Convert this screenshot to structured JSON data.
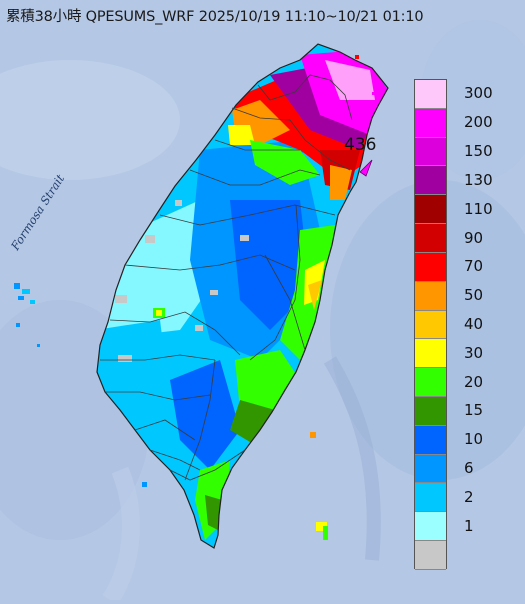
{
  "title": "累積38小時 QPESUMS_WRF 2025/10/19 11:10~10/21 01:10",
  "strait_label": "Formosa Strait",
  "peak_label": "436",
  "legend": [
    {
      "label": "300",
      "color": "#ffc8fa"
    },
    {
      "label": "200",
      "color": "#ff00ff"
    },
    {
      "label": "150",
      "color": "#dc00dc"
    },
    {
      "label": "130",
      "color": "#a000a0"
    },
    {
      "label": "110",
      "color": "#a00000"
    },
    {
      "label": "90",
      "color": "#d20000"
    },
    {
      "label": "70",
      "color": "#ff0000"
    },
    {
      "label": "50",
      "color": "#ff9600"
    },
    {
      "label": "40",
      "color": "#ffc800"
    },
    {
      "label": "30",
      "color": "#ffff00"
    },
    {
      "label": "20",
      "color": "#32ff00"
    },
    {
      "label": "15",
      "color": "#329600"
    },
    {
      "label": "10",
      "color": "#0064ff"
    },
    {
      "label": "6",
      "color": "#0096ff"
    },
    {
      "label": "2",
      "color": "#00c8ff"
    },
    {
      "label": "1",
      "color": "#9bffff"
    },
    {
      "label": "",
      "color": "#c8c8c8"
    }
  ]
}
